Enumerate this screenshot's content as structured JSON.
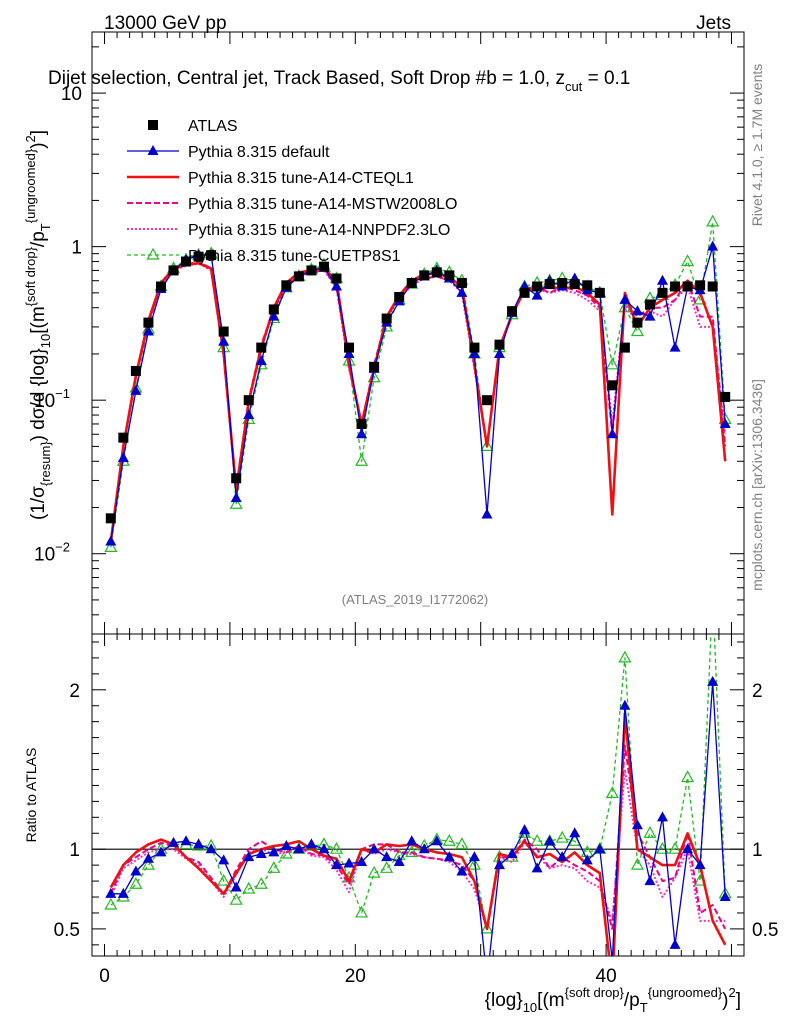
{
  "header": {
    "energy_label": "13000 GeV pp",
    "category_label": "Jets",
    "selection_title": "Dijet selection, Central jet, Track Based, Soft Drop #b = 1.0, z",
    "selection_sub": "cut",
    "selection_tail": " = 0.1",
    "watermark": "(ATLAS_2019_I1772062)",
    "side_rivet": "Rivet 4.1.0, ≥ 1.7M events",
    "side_mcplots": "mcplots.cern.ch [arXiv:1306.3436]"
  },
  "colors": {
    "atlas": "#000000",
    "default": "#0000cc",
    "cteql1": "#ee1111",
    "mstw": "#ee0088",
    "nnpdf": "#ee33cc",
    "cuetp8s1": "#22bb22"
  },
  "chart_data": [
    {
      "type": "line",
      "panel": "main",
      "y_scale": "log",
      "xlim": [
        -1,
        51
      ],
      "ylim": [
        0.003,
        25
      ],
      "ylabel": "(1/σ{resum}) dσ/d {log}10[(m^{soft drop}/p_T^{ungroomed})^2]",
      "y_ticks": [
        "10^-2",
        "10^-1",
        "1",
        "10"
      ],
      "legend_position": "top-left",
      "x": [
        0.5,
        1.5,
        2.5,
        3.5,
        4.5,
        5.5,
        6.5,
        7.5,
        8.5,
        9.5,
        10.5,
        11.5,
        12.5,
        13.5,
        14.5,
        15.5,
        16.5,
        17.5,
        18.5,
        19.5,
        20.5,
        21.5,
        22.5,
        23.5,
        24.5,
        25.5,
        26.5,
        27.5,
        28.5,
        29.5,
        30.5,
        31.5,
        32.5,
        33.5,
        34.5,
        35.5,
        36.5,
        37.5,
        38.5,
        39.5,
        40.5,
        41.5,
        42.5,
        43.5,
        44.5,
        45.5,
        46.5,
        47.5,
        48.5,
        49.5
      ],
      "series": [
        {
          "name": "ATLAS",
          "style": "data",
          "values": [
            0.017,
            0.057,
            0.155,
            0.32,
            0.55,
            0.7,
            0.8,
            0.86,
            0.88,
            0.28,
            0.031,
            0.1,
            0.22,
            0.39,
            0.56,
            0.64,
            0.7,
            0.74,
            0.62,
            0.22,
            0.07,
            0.165,
            0.34,
            0.47,
            0.58,
            0.65,
            0.68,
            0.65,
            0.58,
            0.22,
            0.1,
            0.23,
            0.38,
            0.5,
            0.55,
            0.57,
            0.58,
            0.57,
            0.56,
            0.5,
            0.125,
            0.22,
            0.32,
            0.42,
            0.5,
            0.55,
            0.55,
            0.56,
            0.55,
            0.105
          ]
        },
        {
          "name": "Pythia 8.315 default",
          "style": "default",
          "values": [
            0.012,
            0.042,
            0.115,
            0.28,
            0.53,
            0.7,
            0.82,
            0.88,
            0.88,
            0.24,
            0.023,
            0.08,
            0.18,
            0.35,
            0.54,
            0.64,
            0.7,
            0.73,
            0.55,
            0.2,
            0.06,
            0.16,
            0.32,
            0.44,
            0.58,
            0.64,
            0.7,
            0.62,
            0.5,
            0.2,
            0.018,
            0.2,
            0.37,
            0.55,
            0.48,
            0.6,
            0.55,
            0.62,
            0.52,
            0.5,
            0.06,
            0.45,
            0.38,
            0.35,
            0.6,
            0.22,
            0.55,
            0.52,
            1.0,
            0.07
          ]
        },
        {
          "name": "Pythia 8.315 tune-A14-CTEQL1",
          "style": "cteql1",
          "values": [
            0.012,
            0.05,
            0.145,
            0.33,
            0.58,
            0.72,
            0.76,
            0.78,
            0.72,
            0.2,
            0.026,
            0.098,
            0.22,
            0.4,
            0.58,
            0.68,
            0.7,
            0.72,
            0.6,
            0.17,
            0.07,
            0.16,
            0.35,
            0.48,
            0.6,
            0.66,
            0.67,
            0.63,
            0.55,
            0.17,
            0.05,
            0.22,
            0.36,
            0.52,
            0.53,
            0.55,
            0.53,
            0.55,
            0.5,
            0.42,
            0.018,
            0.5,
            0.3,
            0.4,
            0.45,
            0.5,
            0.6,
            0.5,
            0.3,
            0.04
          ]
        },
        {
          "name": "Pythia 8.315 tune-A14-MSTW2008LO",
          "style": "mstw",
          "values": [
            0.012,
            0.05,
            0.14,
            0.32,
            0.57,
            0.71,
            0.76,
            0.8,
            0.72,
            0.2,
            0.027,
            0.1,
            0.23,
            0.39,
            0.55,
            0.65,
            0.68,
            0.71,
            0.55,
            0.17,
            0.07,
            0.17,
            0.35,
            0.46,
            0.57,
            0.62,
            0.64,
            0.6,
            0.52,
            0.17,
            0.05,
            0.22,
            0.36,
            0.53,
            0.55,
            0.5,
            0.55,
            0.52,
            0.48,
            0.4,
            0.06,
            0.45,
            0.35,
            0.4,
            0.4,
            0.45,
            0.6,
            0.35,
            0.35,
            0.05
          ]
        },
        {
          "name": "Pythia 8.315 tune-A14-NNPDF2.3LO",
          "style": "nnpdf",
          "values": [
            0.012,
            0.049,
            0.14,
            0.31,
            0.55,
            0.7,
            0.75,
            0.78,
            0.7,
            0.19,
            0.026,
            0.098,
            0.22,
            0.38,
            0.55,
            0.65,
            0.67,
            0.7,
            0.54,
            0.16,
            0.07,
            0.16,
            0.34,
            0.46,
            0.56,
            0.62,
            0.64,
            0.6,
            0.5,
            0.16,
            0.05,
            0.22,
            0.35,
            0.52,
            0.53,
            0.5,
            0.52,
            0.5,
            0.45,
            0.38,
            0.07,
            0.42,
            0.32,
            0.38,
            0.35,
            0.45,
            0.55,
            0.3,
            0.3,
            0.06
          ]
        },
        {
          "name": "Pythia 8.315 tune-CUETP8S1",
          "style": "cuetp8s1",
          "values": [
            0.011,
            0.04,
            0.12,
            0.29,
            0.55,
            0.72,
            0.82,
            0.88,
            0.9,
            0.22,
            0.021,
            0.075,
            0.17,
            0.34,
            0.54,
            0.64,
            0.71,
            0.76,
            0.62,
            0.18,
            0.04,
            0.14,
            0.3,
            0.45,
            0.57,
            0.66,
            0.72,
            0.68,
            0.6,
            0.2,
            0.05,
            0.22,
            0.36,
            0.55,
            0.58,
            0.6,
            0.62,
            0.6,
            0.55,
            0.5,
            0.17,
            0.4,
            0.28,
            0.46,
            0.48,
            0.56,
            0.8,
            0.45,
            1.45,
            0.075
          ]
        }
      ]
    },
    {
      "type": "line",
      "panel": "ratio",
      "y_scale": "linear",
      "xlim": [
        -1,
        51
      ],
      "ylim": [
        0.33,
        2.35
      ],
      "ylabel": "Ratio to ATLAS",
      "xlabel": "{log}10[(m^{soft drop}/p_T^{ungroomed})^2]",
      "x_ticks": [
        0,
        20,
        40
      ],
      "y_ticks": [
        0.5,
        1,
        2
      ],
      "x": [
        0.5,
        1.5,
        2.5,
        3.5,
        4.5,
        5.5,
        6.5,
        7.5,
        8.5,
        9.5,
        10.5,
        11.5,
        12.5,
        13.5,
        14.5,
        15.5,
        16.5,
        17.5,
        18.5,
        19.5,
        20.5,
        21.5,
        22.5,
        23.5,
        24.5,
        25.5,
        26.5,
        27.5,
        28.5,
        29.5,
        30.5,
        31.5,
        32.5,
        33.5,
        34.5,
        35.5,
        36.5,
        37.5,
        38.5,
        39.5,
        40.5,
        41.5,
        42.5,
        43.5,
        44.5,
        45.5,
        46.5,
        47.5,
        48.5,
        49.5
      ],
      "series": [
        {
          "name": "Pythia 8.315 default",
          "style": "default",
          "values": [
            0.72,
            0.72,
            0.86,
            0.94,
            0.98,
            1.04,
            1.05,
            1.03,
            1.0,
            0.93,
            0.76,
            0.95,
            0.97,
            0.98,
            1.02,
            1.0,
            1.03,
            1.0,
            0.9,
            0.91,
            0.92,
            1.0,
            0.95,
            0.92,
            1.05,
            1.0,
            1.05,
            0.95,
            0.86,
            0.95,
            0.18,
            0.9,
            0.97,
            1.12,
            0.88,
            1.05,
            0.95,
            1.1,
            0.93,
            1.0,
            0.3,
            1.9,
            1.15,
            0.8,
            1.2,
            0.4,
            1.0,
            0.9,
            2.05,
            0.7
          ]
        },
        {
          "name": "Pythia 8.315 tune-A14-CTEQL1",
          "style": "cteql1",
          "values": [
            0.76,
            0.9,
            0.98,
            1.03,
            1.06,
            1.03,
            0.95,
            0.88,
            0.8,
            0.72,
            0.85,
            0.97,
            1.0,
            1.02,
            1.03,
            1.05,
            1.0,
            0.96,
            0.94,
            0.8,
            1.0,
            0.98,
            1.03,
            1.02,
            1.03,
            1.0,
            0.98,
            0.97,
            0.95,
            0.8,
            0.5,
            0.97,
            0.95,
            1.05,
            0.95,
            0.97,
            0.92,
            0.98,
            0.9,
            0.85,
            0.15,
            1.85,
            1.0,
            0.95,
            0.9,
            0.9,
            1.1,
            0.9,
            0.55,
            0.4
          ]
        },
        {
          "name": "Pythia 8.315 tune-A14-MSTW2008LO",
          "style": "mstw",
          "values": [
            0.72,
            0.9,
            0.95,
            1.0,
            1.04,
            1.02,
            0.95,
            0.92,
            0.82,
            0.72,
            0.87,
            1.0,
            1.05,
            1.0,
            0.98,
            1.02,
            0.97,
            0.96,
            0.9,
            0.78,
            1.0,
            1.03,
            1.03,
            0.98,
            0.98,
            0.95,
            0.94,
            0.93,
            0.9,
            0.8,
            0.5,
            0.95,
            0.95,
            1.06,
            1.0,
            0.88,
            0.95,
            0.9,
            0.86,
            0.8,
            0.5,
            1.65,
            1.1,
            0.95,
            0.8,
            0.82,
            1.1,
            0.6,
            0.65,
            0.5
          ]
        },
        {
          "name": "Pythia 8.315 tune-A14-NNPDF2.3LO",
          "style": "nnpdf",
          "values": [
            0.7,
            0.88,
            0.93,
            0.98,
            1.0,
            1.0,
            0.94,
            0.9,
            0.8,
            0.7,
            0.84,
            0.98,
            1.0,
            0.97,
            0.98,
            1.02,
            0.96,
            0.95,
            0.87,
            0.73,
            1.0,
            0.97,
            1.0,
            0.98,
            0.97,
            0.95,
            0.94,
            0.92,
            0.86,
            0.75,
            0.5,
            0.95,
            0.92,
            1.04,
            0.96,
            0.88,
            0.9,
            0.88,
            0.8,
            0.76,
            0.55,
            1.5,
            1.0,
            0.9,
            0.7,
            0.82,
            1.0,
            0.55,
            0.55,
            0.55
          ]
        },
        {
          "name": "Pythia 8.315 tune-CUETP8S1",
          "style": "cuetp8s1",
          "values": [
            0.65,
            0.7,
            0.78,
            0.9,
            1.0,
            1.03,
            1.03,
            1.02,
            1.02,
            0.8,
            0.68,
            0.75,
            0.78,
            0.88,
            0.97,
            1.0,
            1.02,
            1.03,
            1.0,
            0.82,
            0.6,
            0.85,
            0.88,
            0.96,
            0.98,
            1.02,
            1.06,
            1.05,
            1.03,
            0.9,
            0.5,
            0.95,
            0.95,
            1.1,
            1.05,
            1.05,
            1.07,
            1.05,
            0.98,
            1.0,
            1.35,
            2.2,
            0.9,
            1.1,
            1.0,
            1.0,
            1.45,
            0.8,
            2.6,
            0.72
          ]
        }
      ]
    }
  ]
}
